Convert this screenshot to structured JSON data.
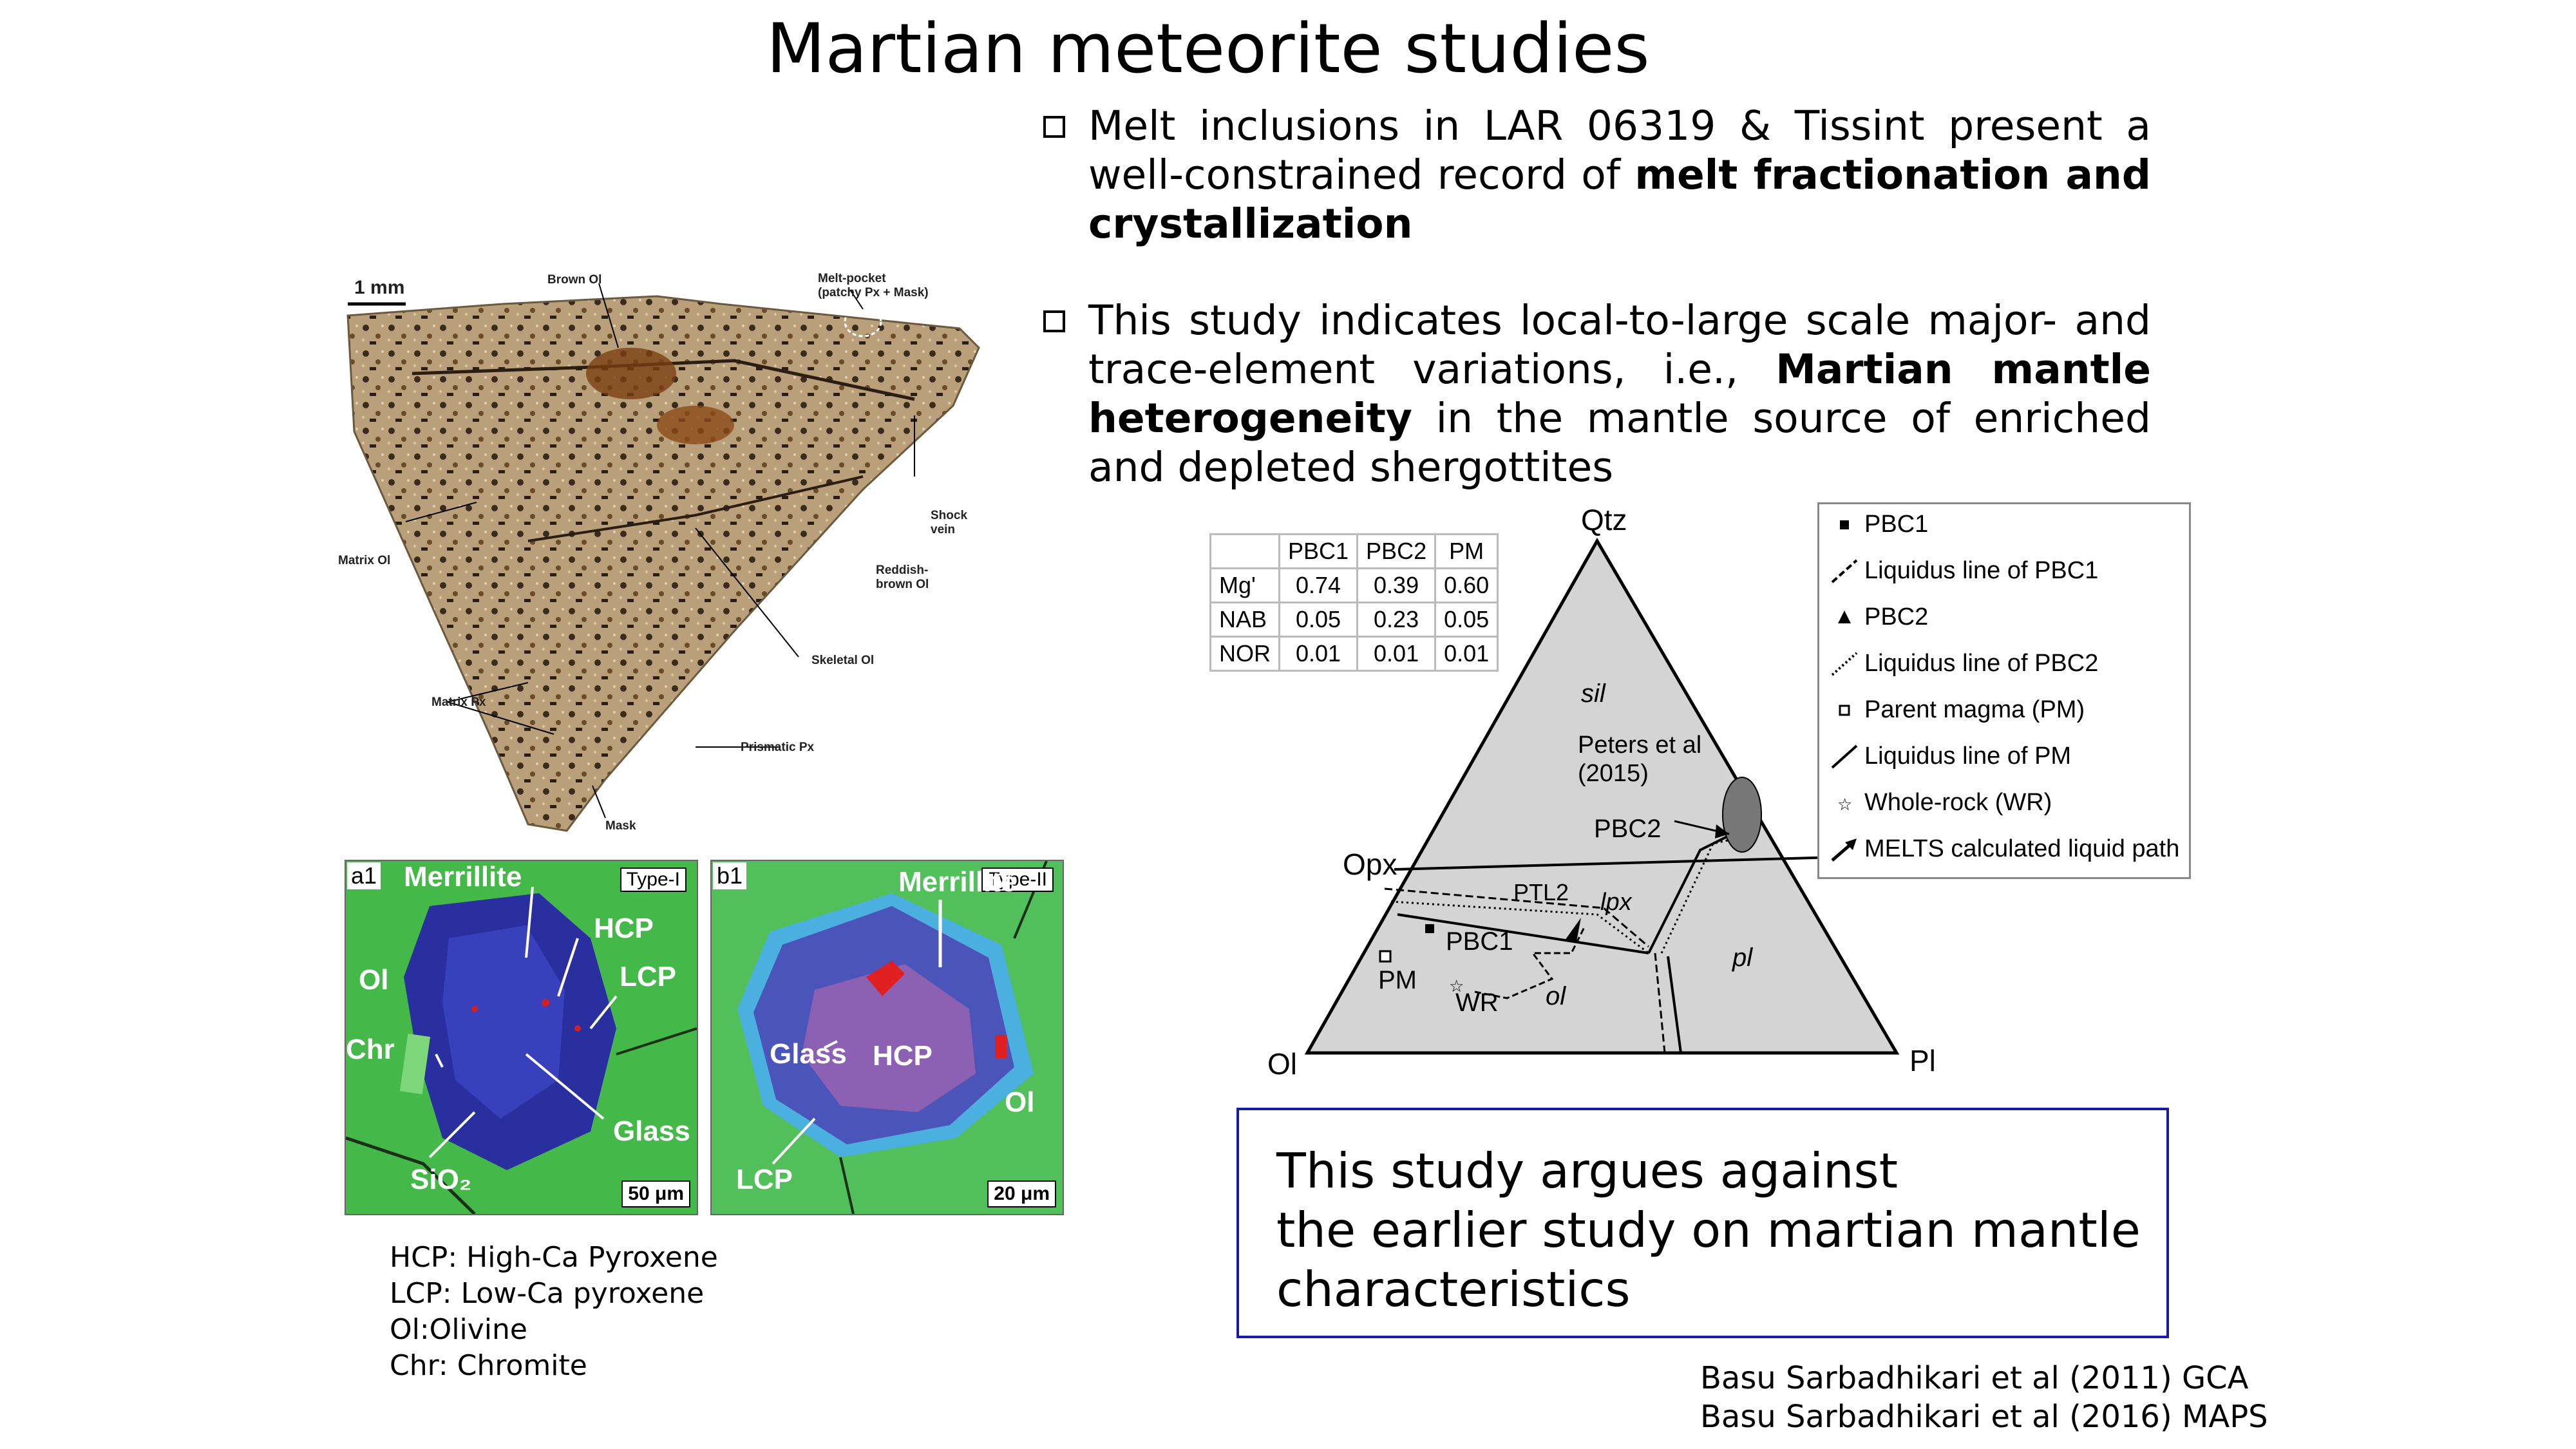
{
  "title": "Martian meteorite studies",
  "bullets": [
    {
      "pre": "Melt inclusions in LAR 06319 & Tissint present a well-constrained record of ",
      "bold": "melt fractionation and crystallization",
      "post": ""
    },
    {
      "pre": "This study indicates local-to-large scale major- and trace-element variations, i.e., ",
      "bold": "Martian mantle heterogeneity",
      "post": " in the mantle source of enriched and depleted shergottites"
    }
  ],
  "rock_figure": {
    "scale": "1 mm",
    "labels": {
      "brown_ol": "Brown Ol",
      "melt_pocket": "Melt-pocket\n(patchy Px + Mask)",
      "shock_vein": "Shock\nvein",
      "reddish_brown_ol": "Reddish-\nbrown Ol",
      "matrix_ol": "Matrix Ol",
      "skeletal_ol": "Skeletal Ol",
      "matrix_px": "Matrix Px",
      "prismatic_px": "Prismatic Px",
      "mask": "Mask"
    }
  },
  "micrographs": {
    "a1": {
      "panel": "a1",
      "type": "Type-I",
      "scale": "50 μm",
      "labels": {
        "merrillite": "Merrillite",
        "hcp": "HCP",
        "lcp": "LCP",
        "ol": "Ol",
        "chr": "Chr",
        "glass": "Glass",
        "sio2": "SiO₂"
      }
    },
    "b1": {
      "panel": "b1",
      "type": "Type-II",
      "scale": "20 μm",
      "labels": {
        "merrillite": "Merrillite",
        "glass": "Glass",
        "hcp": "HCP",
        "ol": "Ol",
        "lcp": "LCP"
      }
    }
  },
  "abbreviations": [
    "HCP: High-Ca Pyroxene",
    "LCP: Low-Ca pyroxene",
    "Ol:Olivine",
    "Chr: Chromite"
  ],
  "table": {
    "headers": [
      "",
      "PBC1",
      "PBC2",
      "PM"
    ],
    "rows": [
      [
        "Mg'",
        "0.74",
        "0.39",
        "0.60"
      ],
      [
        "NAB",
        "0.05",
        "0.23",
        "0.05"
      ],
      [
        "NOR",
        "0.01",
        "0.01",
        "0.01"
      ]
    ]
  },
  "ternary": {
    "apices": {
      "top": "Qtz",
      "left": "Ol",
      "right": "Pl"
    },
    "opx": "Opx",
    "fields": {
      "sil": "sil",
      "lpx": "lpx",
      "pl": "pl",
      "ol": "ol"
    },
    "points": {
      "pbc1": "PBC1",
      "pbc2": "PBC2",
      "pm": "PM",
      "wr": "WR",
      "ptl2": "PTL2"
    },
    "peters": "Peters et al\n(2015)"
  },
  "legend": [
    {
      "symbol": "filled-square-icon",
      "label": "PBC1"
    },
    {
      "symbol": "dash-line-icon",
      "label": "Liquidus line of PBC1"
    },
    {
      "symbol": "filled-triangle-icon",
      "label": "PBC2"
    },
    {
      "symbol": "dotted-line-icon",
      "label": "Liquidus line of PBC2"
    },
    {
      "symbol": "open-square-icon",
      "label": "Parent magma (PM)"
    },
    {
      "symbol": "solid-line-icon",
      "label": "Liquidus line of PM"
    },
    {
      "symbol": "star-icon",
      "label": "Whole-rock (WR)"
    },
    {
      "symbol": "arrow-icon",
      "label": "MELTS calculated liquid path"
    }
  ],
  "conclusion": {
    "line1": "This study argues against",
    "line2": "the earlier study on martian mantle",
    "line3": "characteristics"
  },
  "references": [
    "Basu Sarbadhikari et al (2011) GCA",
    "Basu Sarbadhikari et al (2016) MAPS"
  ]
}
